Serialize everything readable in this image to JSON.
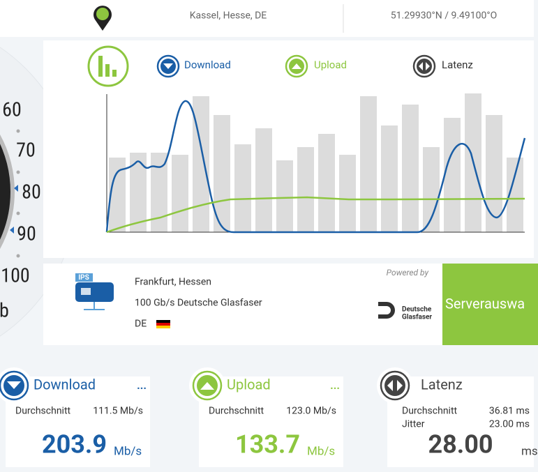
{
  "header": {
    "location": "Kassel, Hesse, DE",
    "coordinates": "51.29930°N / 9.49100°O"
  },
  "gauge": {
    "ticks": [
      "60",
      "70",
      "80",
      "90",
      "100"
    ],
    "unit": "b"
  },
  "chart_legend": [
    "Download",
    "Upload",
    "Latenz"
  ],
  "server": {
    "badge": "IPS",
    "city": "Frankfurt, Hessen",
    "provider": "100 Gb/s Deutsche Glasfaser",
    "country": "DE",
    "powered_by": "Powered by",
    "logo": [
      "Deutsche",
      "Glasfaser"
    ],
    "button": "Serverauswa"
  },
  "results": [
    {
      "title": "Download",
      "more": "...",
      "average_label": "Durchschnitt",
      "average": "111.5 Mb/s",
      "value": "203.9",
      "unit": "Mb/s"
    },
    {
      "title": "Upload",
      "more": "...",
      "average_label": "Durchschnitt",
      "average": "123.0 Mb/s",
      "value": "133.7",
      "unit": "Mb/s"
    },
    {
      "title": "Latenz",
      "average_label": "Durchschnitt",
      "average": "36.81 ms",
      "jitter_label": "Jitter",
      "jitter": "23.00 ms",
      "value": "28.00",
      "unit": "ms"
    }
  ]
}
